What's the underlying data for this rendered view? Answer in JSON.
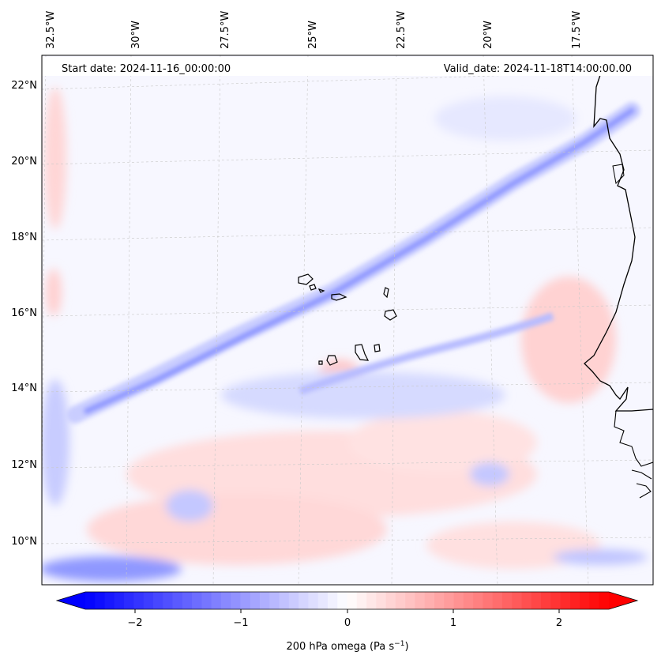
{
  "header": {
    "start_date": "Start date: 2024-11-16_00:00:00",
    "valid_date": "Valid_date: 2024-11-18T14:00:00.00"
  },
  "axes": {
    "lon_labels": [
      "32.5°W",
      "30°W",
      "27.5°W",
      "25°W",
      "22.5°W",
      "20°W",
      "17.5°W"
    ],
    "lat_labels": [
      "22°N",
      "20°N",
      "18°N",
      "16°N",
      "14°N",
      "12°N",
      "10°N"
    ]
  },
  "colorbar": {
    "ticks": [
      "−2",
      "−1",
      "0",
      "1",
      "2"
    ],
    "label": "200 hPa omega (Pa s",
    "label_sup": "−1",
    "label_end": ")",
    "range": [
      -2.7,
      2.7
    ],
    "neg_color": "#0000ff",
    "pos_color": "#ff0000"
  },
  "colors": {
    "band": "#8f98ff",
    "coast": "#000000",
    "grid": "#bbbbbb"
  }
}
